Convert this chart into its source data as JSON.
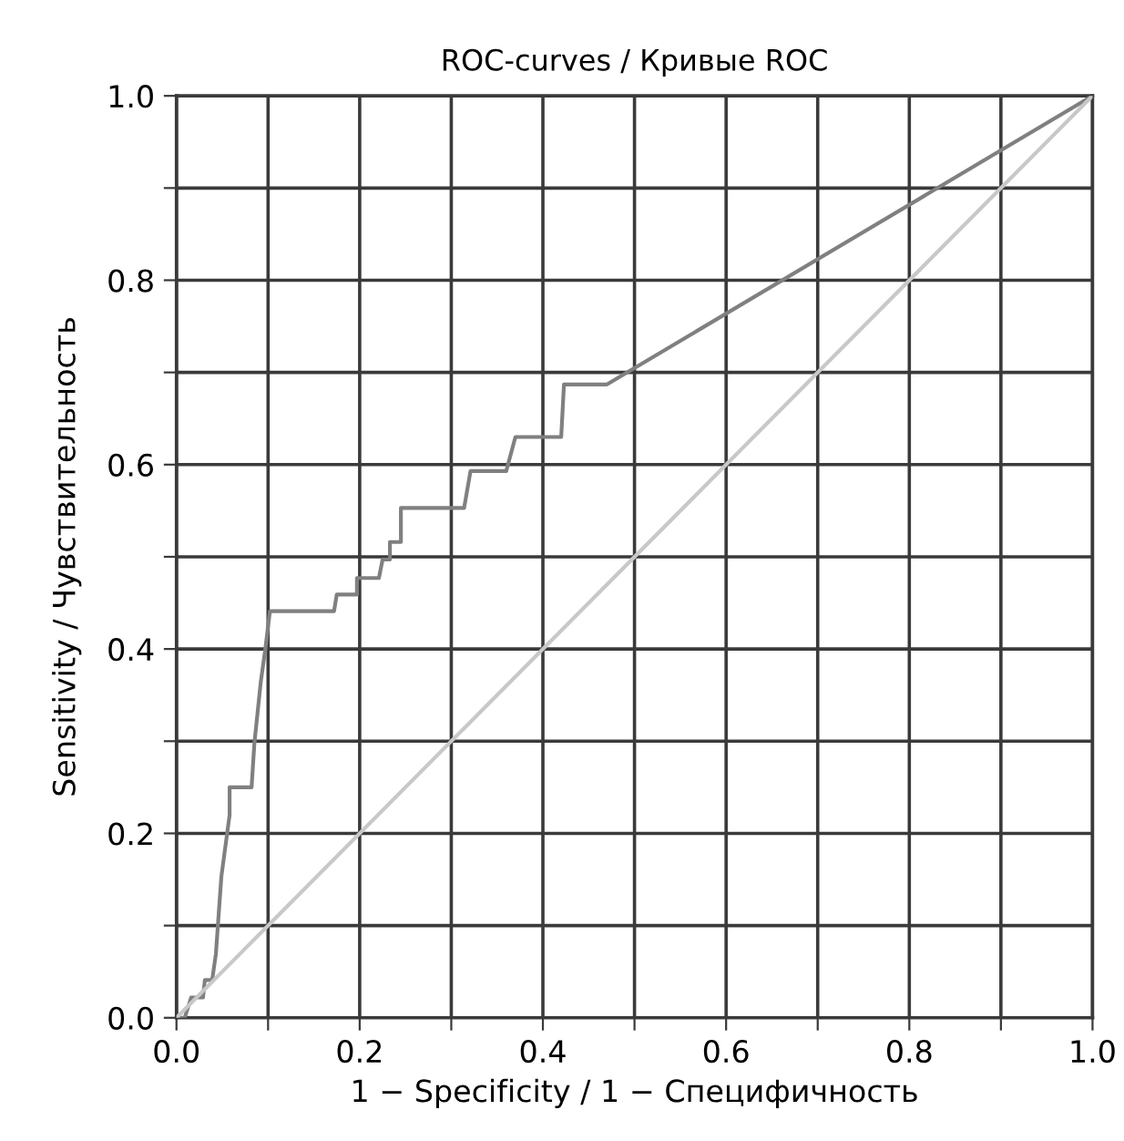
{
  "chart_data": {
    "type": "line",
    "title": "ROC-curves / Кривые ROC",
    "xlabel": "1 − Specificity / 1 − Специфичность",
    "ylabel": "Sensitivity / Чувствительность",
    "series": [
      {
        "color": "#808080",
        "x": [
          0,
          0.009,
          0.016,
          0.029,
          0.031,
          0.039,
          0.043,
          0.049,
          0.058,
          0.058,
          0.082,
          0.085,
          0.092,
          0.097,
          0.102,
          0.172,
          0.175,
          0.197,
          0.197,
          0.221,
          0.225,
          0.233,
          0.233,
          0.245,
          0.245,
          0.314,
          0.321,
          0.36,
          0.37,
          0.42,
          0.423,
          0.47,
          1
        ],
        "values": [
          0,
          0,
          0.022,
          0.022,
          0.041,
          0.041,
          0.069,
          0.153,
          0.22,
          0.25,
          0.25,
          0.297,
          0.364,
          0.4,
          0.441,
          0.441,
          0.459,
          0.459,
          0.477,
          0.477,
          0.497,
          0.497,
          0.516,
          0.516,
          0.553,
          0.553,
          0.593,
          0.593,
          0.63,
          0.63,
          0.687,
          0.687,
          1
        ]
      },
      {
        "color": "#c8c8c8",
        "x": [
          0,
          1
        ],
        "values": [
          0,
          1
        ]
      }
    ],
    "xlim": [
      0,
      1
    ],
    "ylim": [
      0,
      1
    ],
    "xticks": [
      {
        "value": 0,
        "label": "0.0"
      },
      {
        "value": 0.1,
        "label": null
      },
      {
        "value": 0.2,
        "label": "0.2"
      },
      {
        "value": 0.3,
        "label": null
      },
      {
        "value": 0.4,
        "label": "0.4"
      },
      {
        "value": 0.5,
        "label": null
      },
      {
        "value": 0.6,
        "label": "0.6"
      },
      {
        "value": 0.7,
        "label": null
      },
      {
        "value": 0.8,
        "label": "0.8"
      },
      {
        "value": 0.9,
        "label": null
      },
      {
        "value": 1,
        "label": "1.0"
      }
    ],
    "yticks": [
      {
        "value": 0,
        "label": "0.0"
      },
      {
        "value": 0.1,
        "label": null
      },
      {
        "value": 0.2,
        "label": "0.2"
      },
      {
        "value": 0.3,
        "label": null
      },
      {
        "value": 0.4,
        "label": "0.4"
      },
      {
        "value": 0.5,
        "label": null
      },
      {
        "value": 0.6,
        "label": "0.6"
      },
      {
        "value": 0.7,
        "label": null
      },
      {
        "value": 0.8,
        "label": "0.8"
      },
      {
        "value": 0.9,
        "label": null
      },
      {
        "value": 1,
        "label": "1.0"
      }
    ],
    "grid": true,
    "marker": "none",
    "line_style": "solid"
  }
}
